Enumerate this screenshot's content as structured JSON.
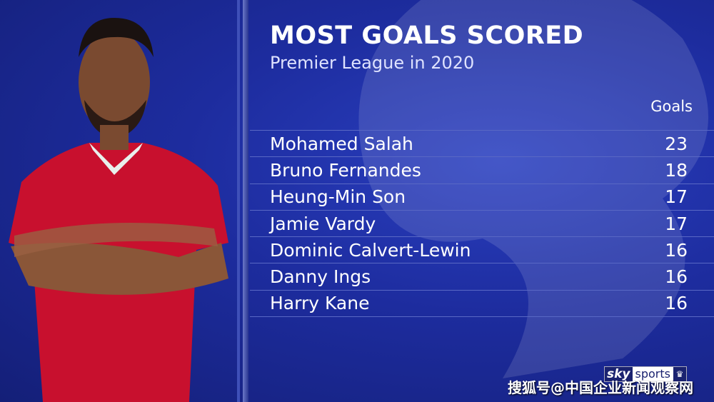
{
  "graphic": {
    "title": "MOST GOALS SCORED",
    "subtitle": "Premier League in 2020",
    "column_header": "Goals"
  },
  "rows": [
    {
      "player": "Mohamed Salah",
      "goals": "23"
    },
    {
      "player": "Bruno Fernandes",
      "goals": "18"
    },
    {
      "player": "Heung-Min Son",
      "goals": "17"
    },
    {
      "player": "Jamie Vardy",
      "goals": "17"
    },
    {
      "player": "Dominic Calvert-Lewin",
      "goals": "16"
    },
    {
      "player": "Danny Ings",
      "goals": "16"
    },
    {
      "player": "Harry Kane",
      "goals": "16"
    }
  ],
  "branding": {
    "sky": "sky",
    "sports": "sports"
  },
  "watermark": "搜狐号@中国企业新闻观察网",
  "colors": {
    "background": "#1d2c9e",
    "shirt": "#c8102e"
  }
}
